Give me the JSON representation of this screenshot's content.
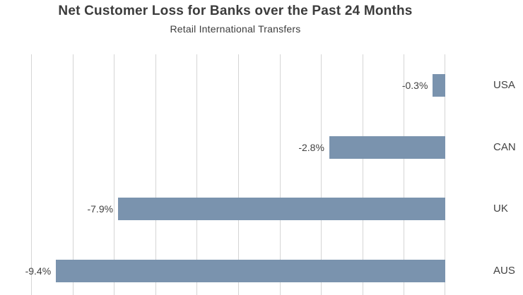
{
  "chart_data": {
    "type": "bar",
    "orientation": "horizontal",
    "title": "Net Customer Loss for Banks over the Past 24 Months",
    "subtitle": "Retail International Transfers",
    "categories": [
      "USA",
      "CAN",
      "UK",
      "AUS"
    ],
    "values": [
      -0.3,
      -2.8,
      -7.9,
      -9.4
    ],
    "value_labels": [
      "-0.3%",
      "-2.8%",
      "-7.9%",
      "-9.4%"
    ],
    "xlabel": "",
    "ylabel": "",
    "xlim": [
      -10,
      0
    ],
    "gridline_step": 1,
    "grid": true,
    "legend": "none",
    "axis_tick_labels_visible": false,
    "bar_color": "#7a93ae",
    "gridline_color": "#d5d5d5",
    "text_color": "#424242",
    "title_color": "#3c3c3c"
  }
}
